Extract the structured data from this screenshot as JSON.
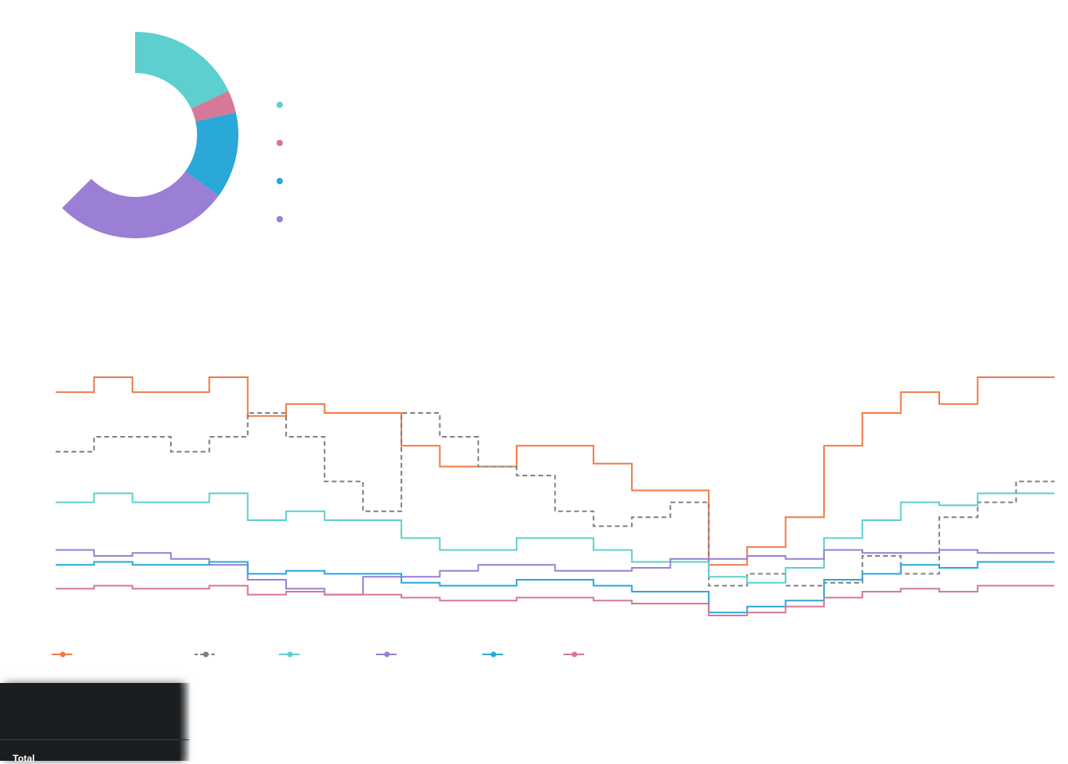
{
  "colors": {
    "teal": "#5ecfcf",
    "pink": "#d6789a",
    "blue": "#2aa8d8",
    "purple": "#9a7fd4",
    "orange": "#ef7a45",
    "gray": "#808080",
    "panel_bg": "#1b1e21"
  },
  "chart_data": [
    {
      "type": "pie",
      "variant": "donut",
      "arc_degrees": 225,
      "series": [
        {
          "value": 18,
          "color": "#5ecfcf"
        },
        {
          "value": 3.5,
          "color": "#d6789a"
        },
        {
          "value": 13.5,
          "color": "#2aa8d8"
        },
        {
          "value": 27.5,
          "color": "#9a7fd4"
        }
      ],
      "legend": {
        "position": "right",
        "entries": [
          "",
          "",
          "",
          ""
        ]
      }
    },
    {
      "type": "line",
      "style": "step",
      "x": [
        0,
        1,
        2,
        3,
        4,
        5,
        6,
        7,
        8,
        9,
        10,
        11,
        12,
        13,
        14,
        15,
        16,
        17,
        18,
        19,
        20,
        21,
        22,
        23,
        24,
        25
      ],
      "ylim": [
        0,
        100
      ],
      "series": [
        {
          "color": "#ef7a45",
          "dash": false,
          "values": [
            75,
            80,
            75,
            75,
            80,
            67,
            71,
            68,
            68,
            57,
            50,
            50,
            57,
            57,
            51,
            42,
            42,
            17,
            23,
            33,
            57,
            68,
            75,
            71,
            80,
            80
          ]
        },
        {
          "color": "#808080",
          "dash": true,
          "values": [
            55,
            60,
            60,
            55,
            60,
            68,
            60,
            45,
            35,
            68,
            60,
            50,
            47,
            35,
            30,
            33,
            38,
            10,
            14,
            10,
            11,
            20,
            14,
            33,
            38,
            45
          ]
        },
        {
          "color": "#5ecfcf",
          "dash": false,
          "values": [
            38,
            41,
            38,
            38,
            41,
            32,
            35,
            32,
            32,
            26,
            22,
            22,
            26,
            26,
            22,
            18,
            18,
            13,
            11,
            16,
            26,
            32,
            38,
            37,
            41,
            41
          ]
        },
        {
          "color": "#9a7fd4",
          "dash": false,
          "values": [
            22,
            20,
            21,
            19,
            17,
            12,
            9,
            7,
            13,
            13,
            15,
            17,
            17,
            15,
            15,
            16,
            19,
            19,
            20,
            19,
            22,
            21,
            21,
            22,
            21,
            21
          ]
        },
        {
          "color": "#2aa8d8",
          "dash": false,
          "values": [
            17,
            18,
            17,
            17,
            18,
            14,
            15,
            14,
            14,
            11,
            10,
            10,
            12,
            12,
            10,
            8,
            8,
            1,
            3,
            5,
            12,
            14,
            17,
            16,
            18,
            18
          ]
        },
        {
          "color": "#d6789a",
          "dash": false,
          "values": [
            9,
            10,
            9,
            9,
            10,
            7,
            8,
            7,
            7,
            6,
            5,
            5,
            6,
            6,
            5,
            4,
            4,
            0,
            1,
            3,
            6,
            8,
            9,
            8,
            10,
            10
          ]
        }
      ],
      "legend": {
        "position": "bottom-left",
        "entries": [
          "",
          "",
          "",
          "",
          "",
          ""
        ]
      }
    }
  ],
  "panel": {
    "total_label": "Total"
  }
}
